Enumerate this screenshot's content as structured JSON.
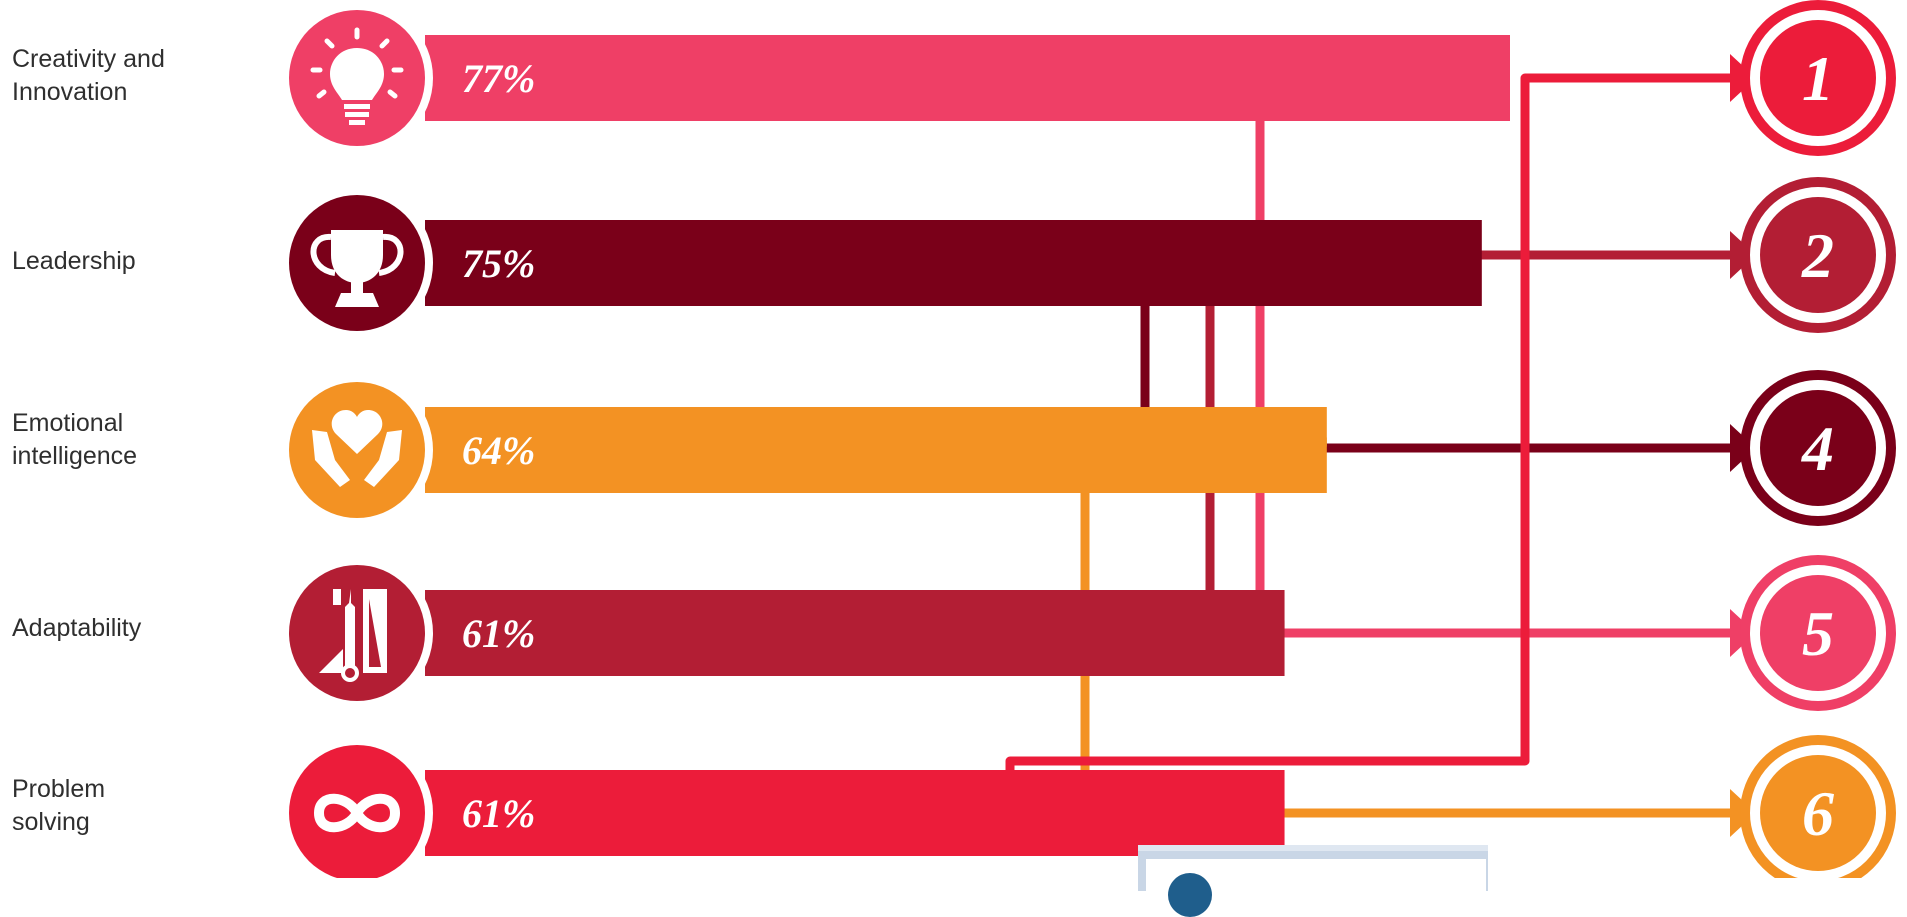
{
  "chart_data": {
    "type": "bar",
    "orientation": "horizontal",
    "categories": [
      "Creativity and Innovation",
      "Leadership",
      "Emotional intelligence",
      "Adaptability",
      "Problem solving"
    ],
    "label_lines": [
      [
        "Creativity and",
        "Innovation"
      ],
      [
        "Leadership"
      ],
      [
        "Emotional",
        "intelligence"
      ],
      [
        "Adaptability"
      ],
      [
        "Problem",
        "solving"
      ]
    ],
    "values": [
      77,
      75,
      64,
      61,
      61
    ],
    "value_labels": [
      "77%",
      "75%",
      "64%",
      "61%",
      "61%"
    ],
    "ranks": [
      5,
      4,
      6,
      2,
      1
    ],
    "rank_badges": [
      "1",
      "2",
      "4",
      "5",
      "6"
    ],
    "icons": [
      "lightbulb-icon",
      "trophy-icon",
      "heart-hands-icon",
      "tools-icon",
      "infinity-icon"
    ],
    "colors": [
      "#ef3f66",
      "#7a0019",
      "#f39223",
      "#b31e34",
      "#ec1c3a"
    ],
    "badge_colors": [
      "#ec1c3a",
      "#b31e34",
      "#7a0019",
      "#ef3f66",
      "#f39223"
    ]
  }
}
